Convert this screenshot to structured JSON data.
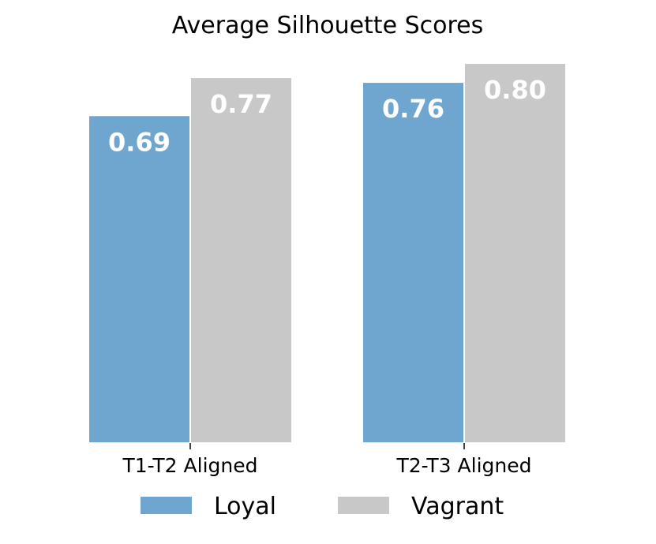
{
  "chart_data": {
    "type": "bar",
    "title": "Average Silhouette Scores",
    "xlabel": "",
    "ylabel": "",
    "categories": [
      "T1-T2 Aligned",
      "T2-T3 Aligned"
    ],
    "series": [
      {
        "name": "Loyal",
        "values": [
          0.69,
          0.76
        ],
        "labels": [
          "0.69",
          "0.76"
        ],
        "color": "#6fa6cf"
      },
      {
        "name": "Vagrant",
        "values": [
          0.77,
          0.8
        ],
        "labels": [
          "0.77",
          "0.80"
        ],
        "color": "#c8c8c8"
      }
    ],
    "ylim": [
      0,
      0.8
    ],
    "grid": false,
    "legend": "bottom"
  }
}
